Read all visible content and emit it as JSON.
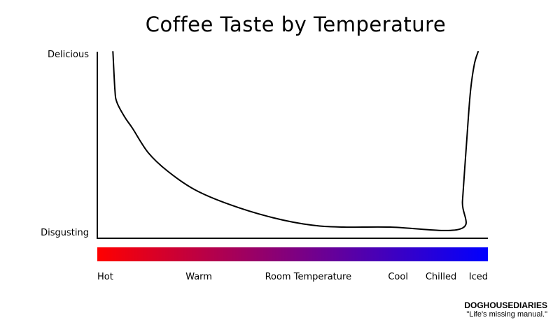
{
  "chart_data": {
    "type": "line",
    "title": "Coffee Taste by Temperature",
    "y_ticks": [
      "Delicious",
      "Disgusting"
    ],
    "y_range": [
      0,
      1
    ],
    "x_categories": [
      {
        "label": "Hot",
        "t": 0.0
      },
      {
        "label": "Warm",
        "t": 0.26
      },
      {
        "label": "Room Temperature",
        "t": 0.54
      },
      {
        "label": "Cool",
        "t": 0.77
      },
      {
        "label": "Chilled",
        "t": 0.88
      },
      {
        "label": "Iced",
        "t": 0.97
      }
    ],
    "x_range": [
      0,
      1
    ],
    "gradient_colors": [
      "#ff0000",
      "#0000ff"
    ],
    "series": [
      {
        "points": [
          [
            0.04,
            1.0
          ],
          [
            0.045,
            0.8
          ],
          [
            0.05,
            0.73
          ],
          [
            0.07,
            0.65
          ],
          [
            0.09,
            0.59
          ],
          [
            0.13,
            0.46
          ],
          [
            0.18,
            0.36
          ],
          [
            0.25,
            0.26
          ],
          [
            0.34,
            0.18
          ],
          [
            0.45,
            0.11
          ],
          [
            0.55,
            0.07
          ],
          [
            0.63,
            0.06
          ],
          [
            0.75,
            0.06
          ],
          [
            0.93,
            0.05
          ],
          [
            0.935,
            0.2
          ],
          [
            0.945,
            0.5
          ],
          [
            0.955,
            0.78
          ],
          [
            0.965,
            0.93
          ],
          [
            0.975,
            1.0
          ]
        ]
      }
    ]
  },
  "brand": {
    "name": "DOGHOUSEDIARIES",
    "tagline": "\"Life's missing manual.\""
  }
}
